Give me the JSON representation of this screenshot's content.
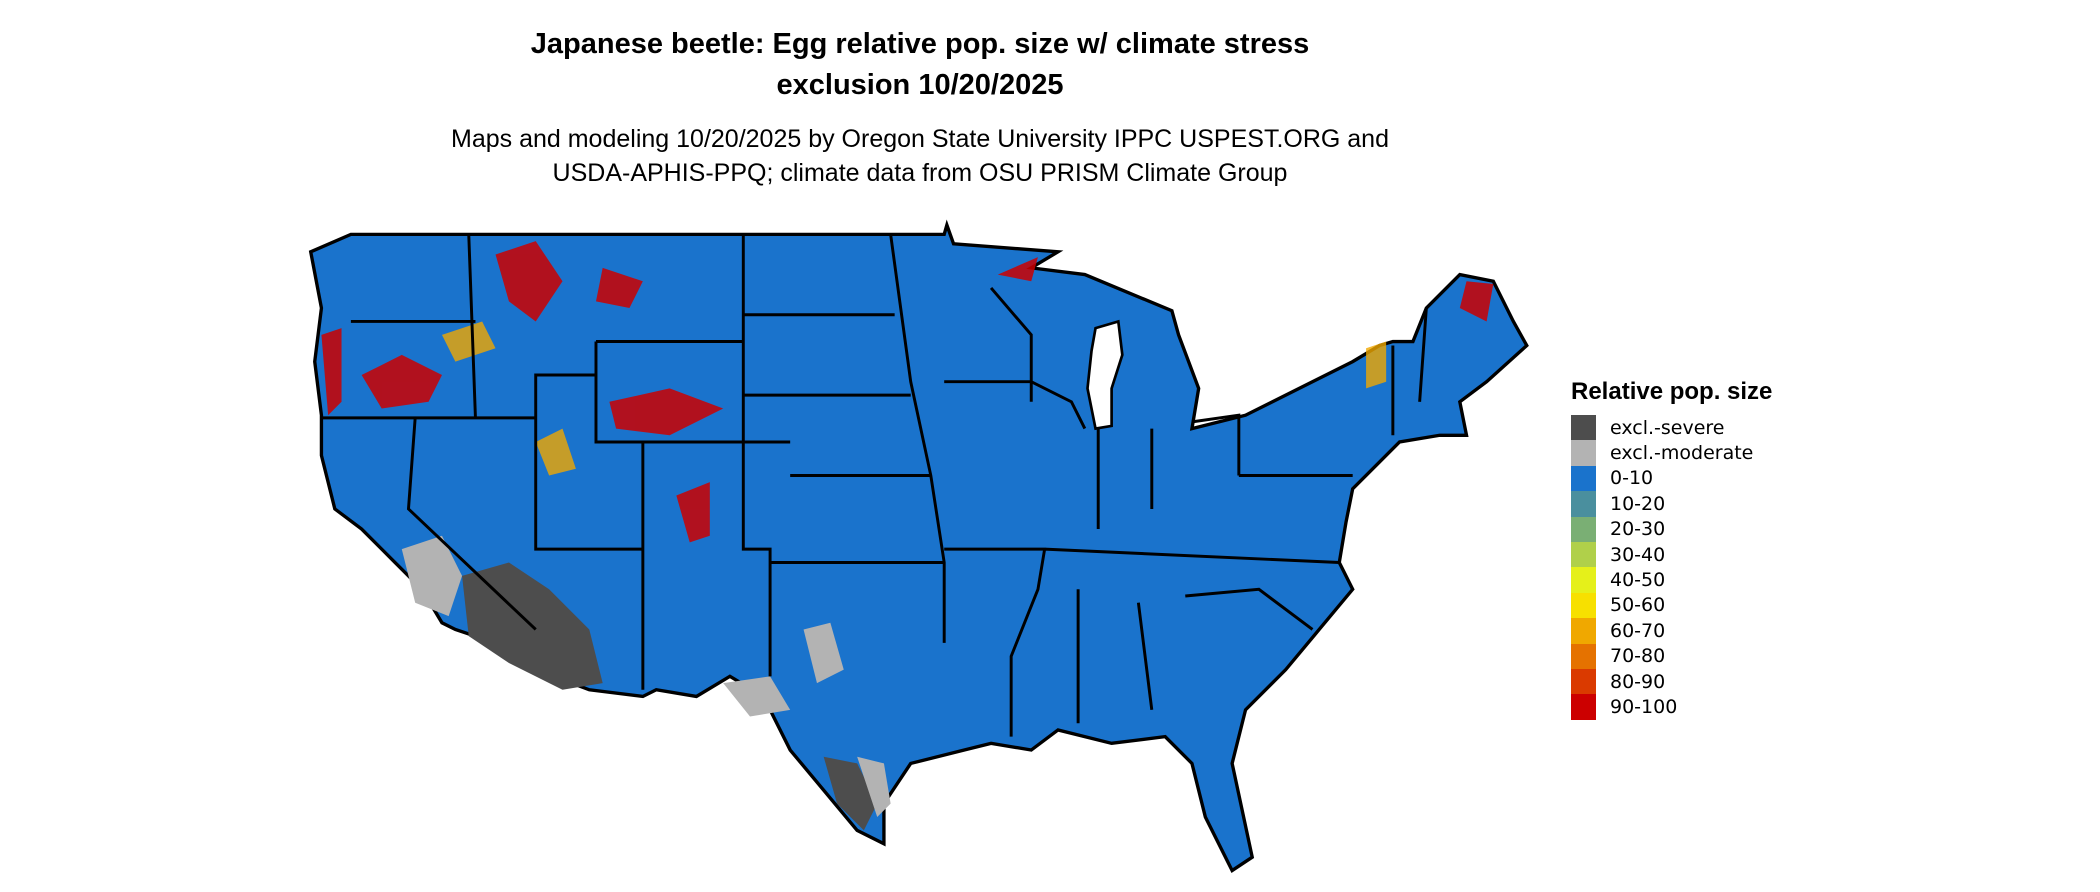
{
  "title": {
    "line1": "Japanese beetle: Egg relative pop. size w/ climate stress",
    "line2": "exclusion 10/20/2025"
  },
  "subtitle": {
    "line1": "Maps and modeling 10/20/2025 by Oregon State University IPPC USPEST.ORG and",
    "line2": "USDA-APHIS-PPQ; climate data from OSU PRISM Climate Group"
  },
  "chart_data": {
    "type": "heatmap",
    "region": "Contiguous United States",
    "legend_title": "Relative pop. size",
    "legend_placement": "right",
    "dominant_class": "0-10",
    "classes": [
      {
        "label": "excl.-severe",
        "color": "#4d4d4d"
      },
      {
        "label": "excl.-moderate",
        "color": "#b3b3b3"
      },
      {
        "label": "0-10",
        "color": "#1a73cc"
      },
      {
        "label": "10-20",
        "color": "#4a8f9e"
      },
      {
        "label": "20-30",
        "color": "#7aaf74"
      },
      {
        "label": "30-40",
        "color": "#b0d04a"
      },
      {
        "label": "40-50",
        "color": "#e5f01a"
      },
      {
        "label": "50-60",
        "color": "#f7e000"
      },
      {
        "label": "60-70",
        "color": "#f0a800"
      },
      {
        "label": "70-80",
        "color": "#e57200"
      },
      {
        "label": "80-90",
        "color": "#da3a00"
      },
      {
        "label": "90-100",
        "color": "#cc0000"
      }
    ]
  }
}
